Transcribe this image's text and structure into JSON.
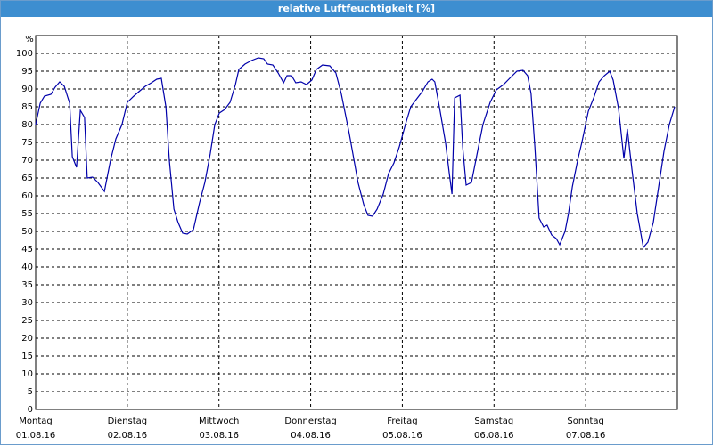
{
  "chart_data": {
    "type": "line",
    "title": "relative Luftfeuchtigkeit [%]",
    "y_label": "%",
    "series": [
      {
        "name": "relative Luftfeuchtigkeit",
        "color": "#0000aa",
        "x": [
          0,
          1.2,
          2.3,
          4.0,
          5.1,
          6.3,
          7.5,
          8.9,
          9.6,
          10.7,
          11.7,
          12.8,
          13.5,
          14.9,
          16.3,
          18.0,
          19.6,
          21.0,
          22.6,
          24.0,
          25.7,
          27.3,
          28.7,
          30.3,
          31.7,
          32.9,
          34.1,
          35.0,
          36.2,
          37.3,
          38.5,
          39.7,
          41.3,
          42.9,
          44.3,
          45.7,
          46.9,
          48.1,
          49.5,
          50.9,
          52.3,
          53.2,
          54.8,
          56.5,
          58.3,
          59.7,
          60.7,
          62.1,
          63.5,
          64.9,
          65.8,
          67.0,
          68.1,
          69.5,
          70.9,
          72.3,
          73.5,
          75.1,
          77.0,
          78.6,
          80.0,
          82.1,
          84.4,
          85.9,
          87.0,
          88.2,
          89.4,
          91.0,
          92.4,
          93.8,
          95.2,
          96.8,
          98.2,
          99.6,
          101.2,
          102.7,
          103.8,
          104.5,
          105.7,
          107.3,
          108.3,
          109.0,
          109.7,
          111.1,
          111.8,
          112.7,
          114.1,
          115.7,
          117.1,
          119.0,
          120.6,
          122.5,
          124.1,
          126.0,
          127.6,
          128.8,
          129.7,
          130.7,
          131.8,
          133.0,
          133.9,
          135.1,
          136.3,
          137.2,
          138.6,
          139.5,
          140.5,
          141.9,
          143.0,
          144.7,
          146.1,
          147.5,
          148.9,
          150.3,
          151.2,
          152.6,
          154.0,
          154.9,
          156.1,
          157.5,
          159.1,
          160.3,
          161.7,
          163.1,
          164.5,
          165.9,
          167.3
        ],
        "values": [
          80,
          86,
          88,
          88.5,
          90.5,
          92,
          90.75,
          86,
          71,
          68,
          84,
          82,
          65,
          65.25,
          63.75,
          61.25,
          70,
          76,
          80,
          86.25,
          88,
          89.5,
          90.75,
          91.75,
          92.75,
          93,
          85,
          70,
          56.25,
          52.5,
          49.5,
          49.25,
          50.5,
          58,
          63.75,
          71.75,
          80,
          83.25,
          84.25,
          86.25,
          91.25,
          95.5,
          97,
          98,
          98.75,
          98.5,
          97,
          96.75,
          94.5,
          91.75,
          93.75,
          93.75,
          91.75,
          92,
          91.25,
          92.5,
          95.5,
          96.75,
          96.5,
          94.5,
          88.75,
          77.5,
          63.75,
          57.5,
          54.5,
          54.25,
          56.25,
          60.5,
          66.25,
          69.25,
          73.75,
          80,
          85,
          87,
          89.25,
          92,
          92.75,
          92,
          85,
          75,
          66.25,
          60.5,
          87.5,
          88.25,
          73.75,
          63,
          63.75,
          72.5,
          80,
          86.25,
          89.75,
          91.25,
          93,
          95,
          95.25,
          93.75,
          88.75,
          73.75,
          53.75,
          51.25,
          51.75,
          49,
          48,
          46.25,
          50,
          55,
          62.5,
          70,
          75,
          83.75,
          87.5,
          92,
          93.75,
          95,
          92.5,
          84.5,
          70.5,
          78.75,
          67.5,
          55,
          45.5,
          47,
          52.5,
          62.5,
          72.5,
          80,
          85
        ]
      }
    ],
    "xlim": [
      0,
      168
    ],
    "xticks": [
      {
        "value": 0,
        "label": "Montag"
      },
      {
        "value": 24,
        "label": "Dienstag"
      },
      {
        "value": 48,
        "label": "Mittwoch"
      },
      {
        "value": 72,
        "label": "Donnerstag"
      },
      {
        "value": 96,
        "label": "Freitag"
      },
      {
        "value": 120,
        "label": "Samstag"
      },
      {
        "value": 144,
        "label": "Sonntag"
      }
    ],
    "xtick_dates": [
      "01.08.16",
      "02.08.16",
      "03.08.16",
      "04.08.16",
      "05.08.16",
      "06.08.16",
      "07.08.16"
    ],
    "ylim": [
      0,
      105
    ],
    "yticks": [
      0,
      5,
      10,
      15,
      20,
      25,
      30,
      35,
      40,
      45,
      50,
      55,
      60,
      65,
      70,
      75,
      80,
      85,
      90,
      95,
      100
    ],
    "grid": true
  }
}
